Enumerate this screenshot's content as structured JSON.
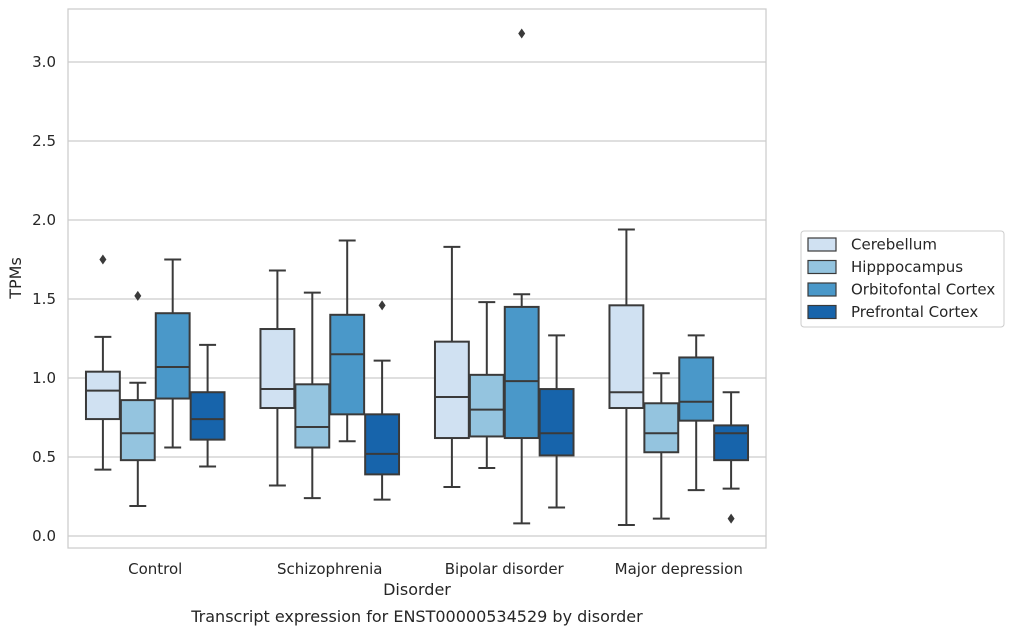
{
  "chart_data": {
    "type": "box",
    "xlabel": "Disorder",
    "ylabel": "TPMs",
    "caption": "Transcript expression for ENST00000534529 by disorder",
    "ylim": [
      -0.07,
      3.36
    ],
    "yticks": [
      "0.0",
      "0.5",
      "1.0",
      "1.5",
      "2.0",
      "2.5",
      "3.0"
    ],
    "grid": "horizontal",
    "legend_position": "right",
    "categories": [
      "Control",
      "Schizophrenia",
      "Bipolar disorder",
      "Major depression"
    ],
    "series": [
      {
        "name": "Cerebellum",
        "color": "#d0e1f2",
        "boxes": [
          {
            "min": 0.42,
            "q1": 0.74,
            "median": 0.92,
            "q3": 1.04,
            "max": 1.26,
            "outliers": [
              1.75
            ]
          },
          {
            "min": 0.32,
            "q1": 0.81,
            "median": 0.93,
            "q3": 1.31,
            "max": 1.68,
            "outliers": []
          },
          {
            "min": 0.31,
            "q1": 0.62,
            "median": 0.88,
            "q3": 1.23,
            "max": 1.83,
            "outliers": []
          },
          {
            "min": 0.07,
            "q1": 0.81,
            "median": 0.91,
            "q3": 1.46,
            "max": 1.94,
            "outliers": []
          }
        ]
      },
      {
        "name": "Hipppocampus",
        "color": "#94c4df",
        "boxes": [
          {
            "min": 0.19,
            "q1": 0.48,
            "median": 0.65,
            "q3": 0.86,
            "max": 0.97,
            "outliers": [
              1.52
            ]
          },
          {
            "min": 0.24,
            "q1": 0.56,
            "median": 0.69,
            "q3": 0.96,
            "max": 1.54,
            "outliers": []
          },
          {
            "min": 0.43,
            "q1": 0.63,
            "median": 0.8,
            "q3": 1.02,
            "max": 1.48,
            "outliers": []
          },
          {
            "min": 0.11,
            "q1": 0.53,
            "median": 0.65,
            "q3": 0.84,
            "max": 1.03,
            "outliers": []
          }
        ]
      },
      {
        "name": "Orbitofontal Cortex",
        "color": "#4a98c9",
        "boxes": [
          {
            "min": 0.56,
            "q1": 0.87,
            "median": 1.07,
            "q3": 1.41,
            "max": 1.75,
            "outliers": []
          },
          {
            "min": 0.6,
            "q1": 0.77,
            "median": 1.15,
            "q3": 1.4,
            "max": 1.87,
            "outliers": []
          },
          {
            "min": 0.08,
            "q1": 0.62,
            "median": 0.98,
            "q3": 1.45,
            "max": 1.53,
            "outliers": [
              3.18
            ]
          },
          {
            "min": 0.29,
            "q1": 0.73,
            "median": 0.85,
            "q3": 1.13,
            "max": 1.27,
            "outliers": []
          }
        ]
      },
      {
        "name": "Prefrontal Cortex",
        "color": "#1764ab",
        "boxes": [
          {
            "min": 0.44,
            "q1": 0.61,
            "median": 0.74,
            "q3": 0.91,
            "max": 1.21,
            "outliers": []
          },
          {
            "min": 0.23,
            "q1": 0.39,
            "median": 0.52,
            "q3": 0.77,
            "max": 1.11,
            "outliers": [
              1.46
            ]
          },
          {
            "min": 0.18,
            "q1": 0.51,
            "median": 0.65,
            "q3": 0.93,
            "max": 1.27,
            "outliers": []
          },
          {
            "min": 0.3,
            "q1": 0.48,
            "median": 0.65,
            "q3": 0.7,
            "max": 0.91,
            "outliers": [
              0.11
            ]
          }
        ]
      }
    ]
  }
}
